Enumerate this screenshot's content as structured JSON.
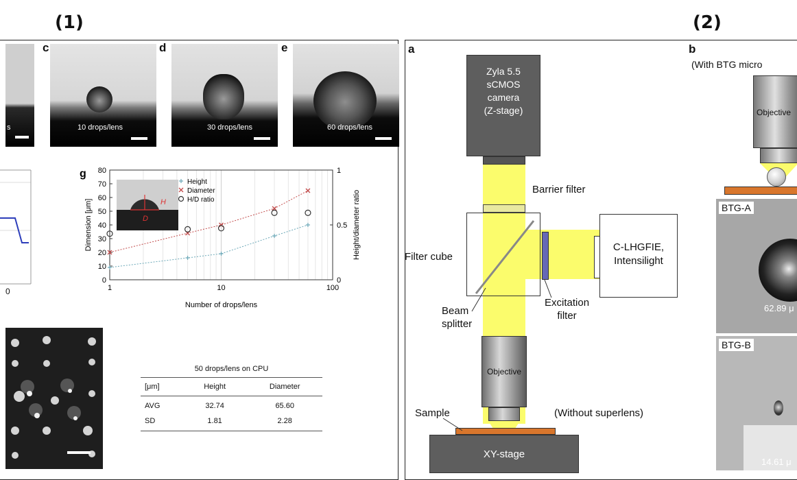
{
  "panel_titles": {
    "left": "(1)",
    "right": "(2)"
  },
  "left": {
    "photos": [
      {
        "label": "",
        "caption": "s"
      },
      {
        "label": "c",
        "caption": "10 drops/lens"
      },
      {
        "label": "d",
        "caption": "30 drops/lens"
      },
      {
        "label": "e",
        "caption": "60 drops/lens"
      }
    ],
    "partial_axis_tick": "0",
    "table": {
      "title": "50 drops/lens on CPU",
      "headers": [
        "[μm]",
        "Height",
        "Diameter"
      ],
      "rows": [
        [
          "AVG",
          "32.74",
          "65.60"
        ],
        [
          "SD",
          "1.81",
          "2.28"
        ]
      ]
    }
  },
  "chart_data": {
    "type": "scatter",
    "panel_label": "g",
    "xlabel": "Number of drops/lens",
    "ylabel": "Dimension [μm]",
    "y2label": "Height/diameter ratio",
    "xscale": "log",
    "xlim": [
      1,
      100
    ],
    "ylim": [
      0,
      80
    ],
    "y2lim": [
      0,
      1
    ],
    "x_ticks": [
      "1",
      "10",
      "100"
    ],
    "y_ticks": [
      "0",
      "10",
      "20",
      "30",
      "40",
      "50",
      "60",
      "70",
      "80"
    ],
    "y2_ticks": [
      "0",
      "0.5",
      "1"
    ],
    "legend": [
      "Height",
      "Diameter",
      "H/D ratio"
    ],
    "legend_placement": "top-center",
    "inset_labels": {
      "h": "H",
      "d": "D"
    },
    "series": [
      {
        "name": "Height",
        "marker": "+",
        "color": "#6aa7b7",
        "axis": "left",
        "x": [
          1,
          5,
          10,
          30,
          60
        ],
        "values": [
          9,
          16,
          19,
          32,
          40
        ]
      },
      {
        "name": "Diameter",
        "marker": "x",
        "color": "#c24a4a",
        "axis": "left",
        "x": [
          1,
          5,
          10,
          30,
          60
        ],
        "values": [
          20,
          34,
          40,
          52,
          65
        ]
      },
      {
        "name": "H/D ratio",
        "marker": "o",
        "color": "#333333",
        "axis": "right",
        "x": [
          1,
          5,
          10,
          30,
          60
        ],
        "values": [
          0.42,
          0.46,
          0.47,
          0.61,
          0.61
        ]
      }
    ]
  },
  "right": {
    "panel_a": "a",
    "panel_b": "b",
    "camera": [
      "Zyla 5.5",
      "sCMOS",
      "camera",
      "(Z-stage)"
    ],
    "barrier_filter": "Barrier filter",
    "filter_cube": "Filter cube",
    "beam_splitter": [
      "Beam",
      "splitter"
    ],
    "excitation_filter": [
      "Excitation",
      "filter"
    ],
    "light_source": [
      "C-LHGFIE,",
      "Intensilight"
    ],
    "objective": "Objective",
    "sample": "Sample",
    "without_superlens": "(Without superlens)",
    "stage": "XY-stage",
    "b_header": "(With BTG micro",
    "b_objective": "Objective",
    "btg_a": {
      "label": "BTG-A",
      "measure": "62.89 μ"
    },
    "btg_b": {
      "label": "BTG-B",
      "measure": "14.61 μ"
    },
    "colors": {
      "beam": "#fbfc6c",
      "sample": "#d8762c",
      "box": "#5e5e5e"
    }
  }
}
